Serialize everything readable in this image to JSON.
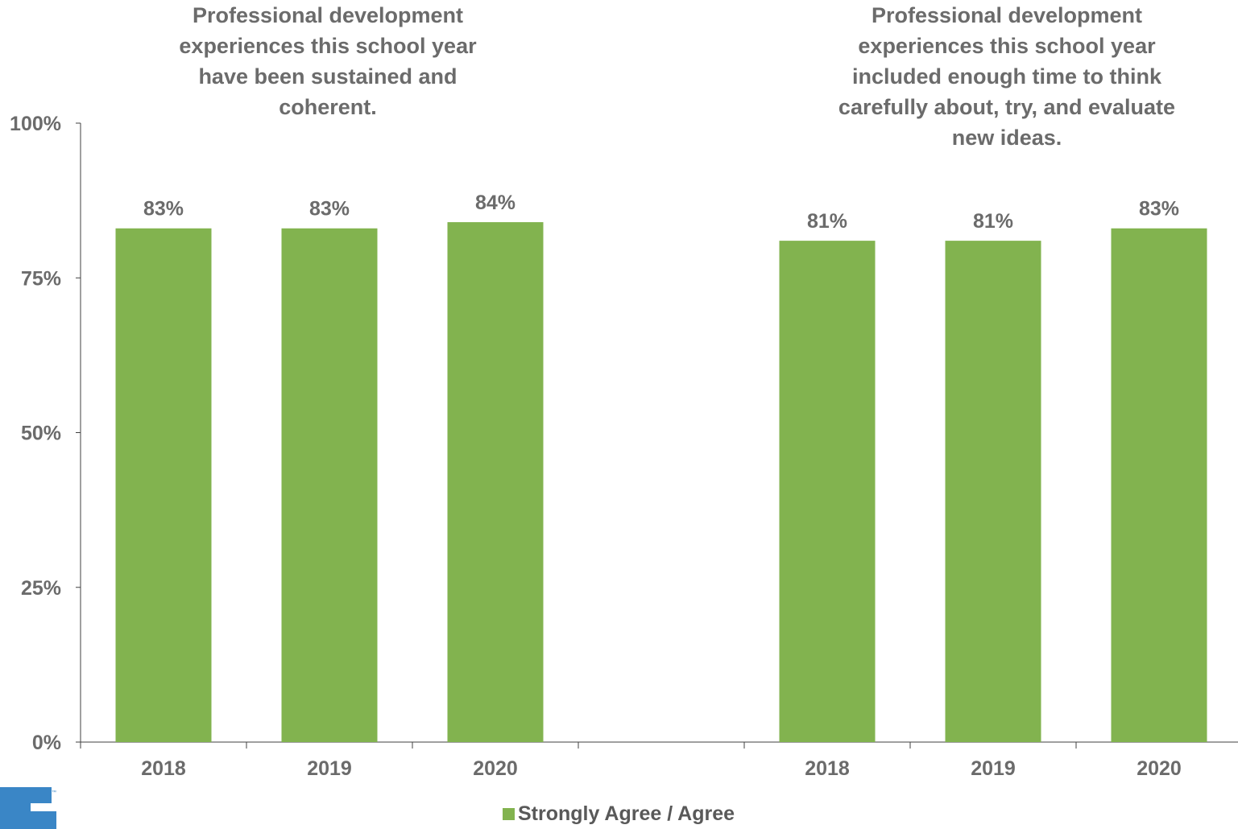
{
  "colors": {
    "bar": "#82b34f",
    "text": "#6b6b6b",
    "axis": "#404040",
    "logo": "#3a86c6"
  },
  "chart_data": {
    "type": "bar",
    "ylim": [
      0,
      1
    ],
    "yticks": [
      "0%",
      "25%",
      "50%",
      "75%",
      "100%"
    ],
    "grid": false,
    "legend_position": "bottom",
    "legend": [
      "Strongly Agree / Agree"
    ],
    "panels": [
      {
        "title": "Professional development experiences this school year have been sustained and coherent.",
        "title_lines": [
          "Professional development",
          "experiences this school year",
          "have been sustained and",
          "coherent."
        ],
        "categories": [
          "2018",
          "2019",
          "2020"
        ],
        "values": [
          0.83,
          0.83,
          0.84
        ],
        "labels": [
          "83%",
          "83%",
          "84%"
        ]
      },
      {
        "title": "Professional development experiences this school year included enough time to think carefully about, try, and evaluate new ideas.",
        "title_lines": [
          "Professional development",
          "experiences this school year",
          "included enough time to think",
          "carefully about, try, and evaluate",
          "new ideas."
        ],
        "categories": [
          "2018",
          "2019",
          "2020"
        ],
        "values": [
          0.81,
          0.81,
          0.83
        ],
        "labels": [
          "81%",
          "81%",
          "83%"
        ]
      }
    ]
  }
}
